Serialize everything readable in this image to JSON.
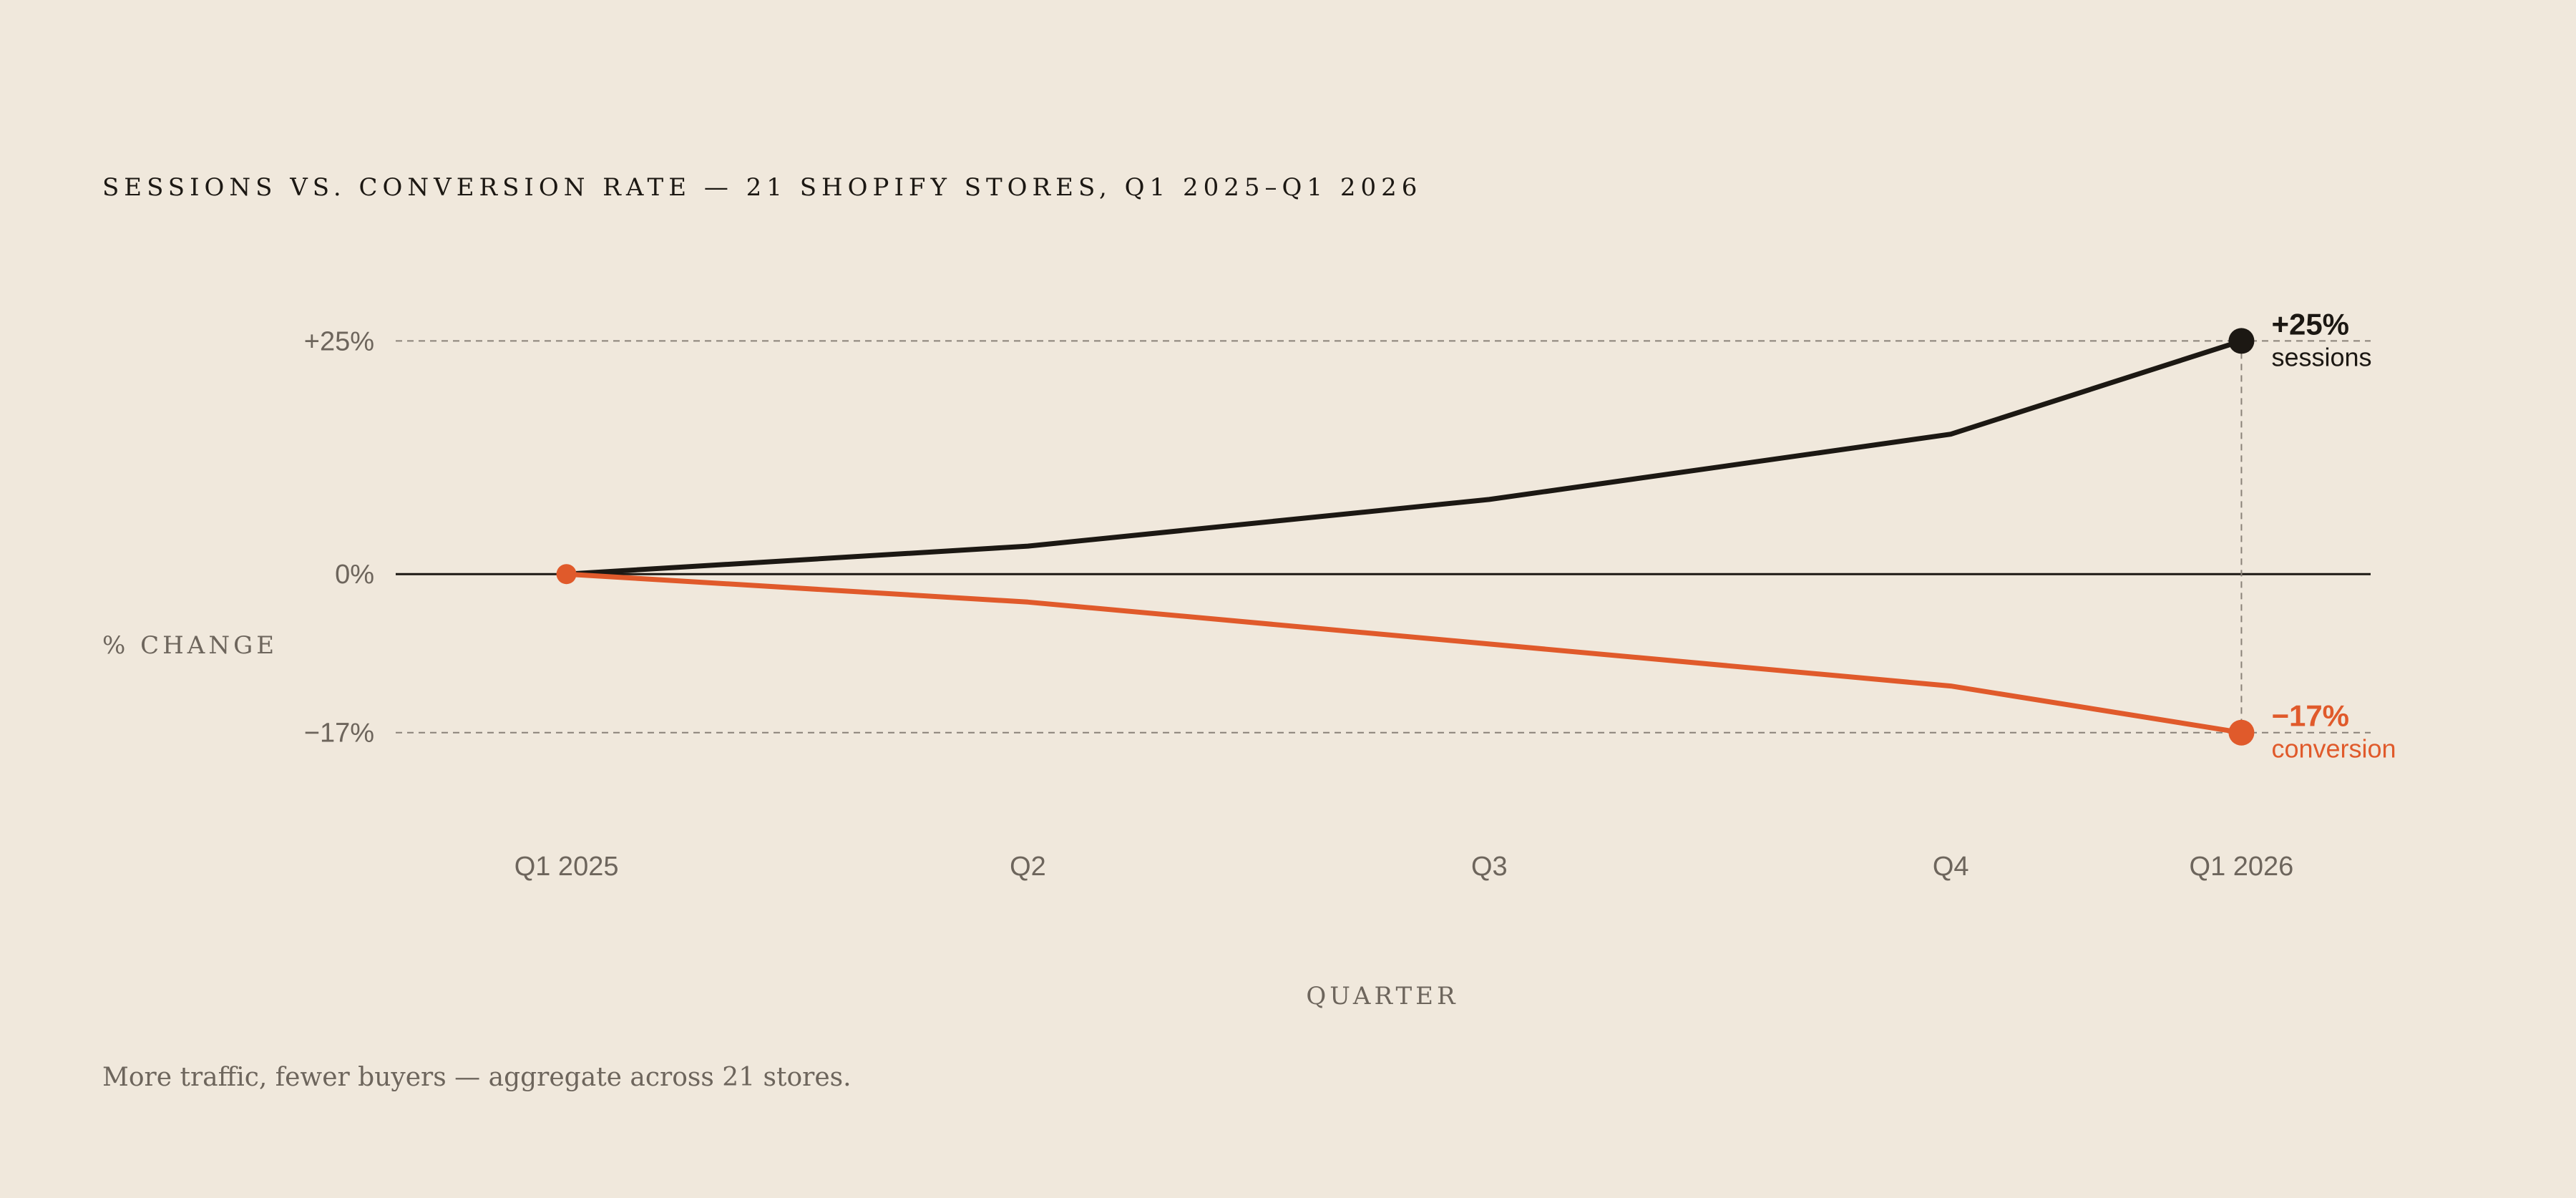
{
  "chart_data": {
    "type": "line",
    "title": "SESSIONS VS. CONVERSION RATE — 21 SHOPIFY STORES, Q1 2025–Q1 2026",
    "xlabel": "QUARTER",
    "ylabel": "% CHANGE",
    "caption": "More traffic, fewer buyers — aggregate across 21 stores.",
    "x": [
      0,
      1,
      2,
      3,
      3.63
    ],
    "x_tick_labels": [
      "Q1 2025",
      "Q2",
      "Q3",
      "Q4",
      "Q1 2026"
    ],
    "xlim": [
      -0.37,
      3.91
    ],
    "ylim": [
      -25,
      37
    ],
    "y_ticks": [
      25,
      0,
      -17
    ],
    "y_tick_labels": [
      "+25%",
      "0%",
      "−17%"
    ],
    "series": [
      {
        "name": "sessions",
        "values": [
          0,
          3,
          8,
          15,
          25
        ],
        "color": "#1c1813",
        "end_label": "+25%"
      },
      {
        "name": "conversion",
        "values": [
          0,
          -3,
          -7.5,
          -12,
          -17
        ],
        "color": "#e05a2b",
        "end_label": "−17%"
      }
    ],
    "grid": "dashed reference lines at +25% and −17%, solid baseline at 0%",
    "legend": "direct labels at line ends",
    "colors": {
      "background": "#f0e8dc",
      "sessions": "#1c1813",
      "conversion": "#e05a2b",
      "muted_text": "#6d655c",
      "baseline": "#1c1813",
      "dashed_grid": "#8a8279"
    }
  }
}
